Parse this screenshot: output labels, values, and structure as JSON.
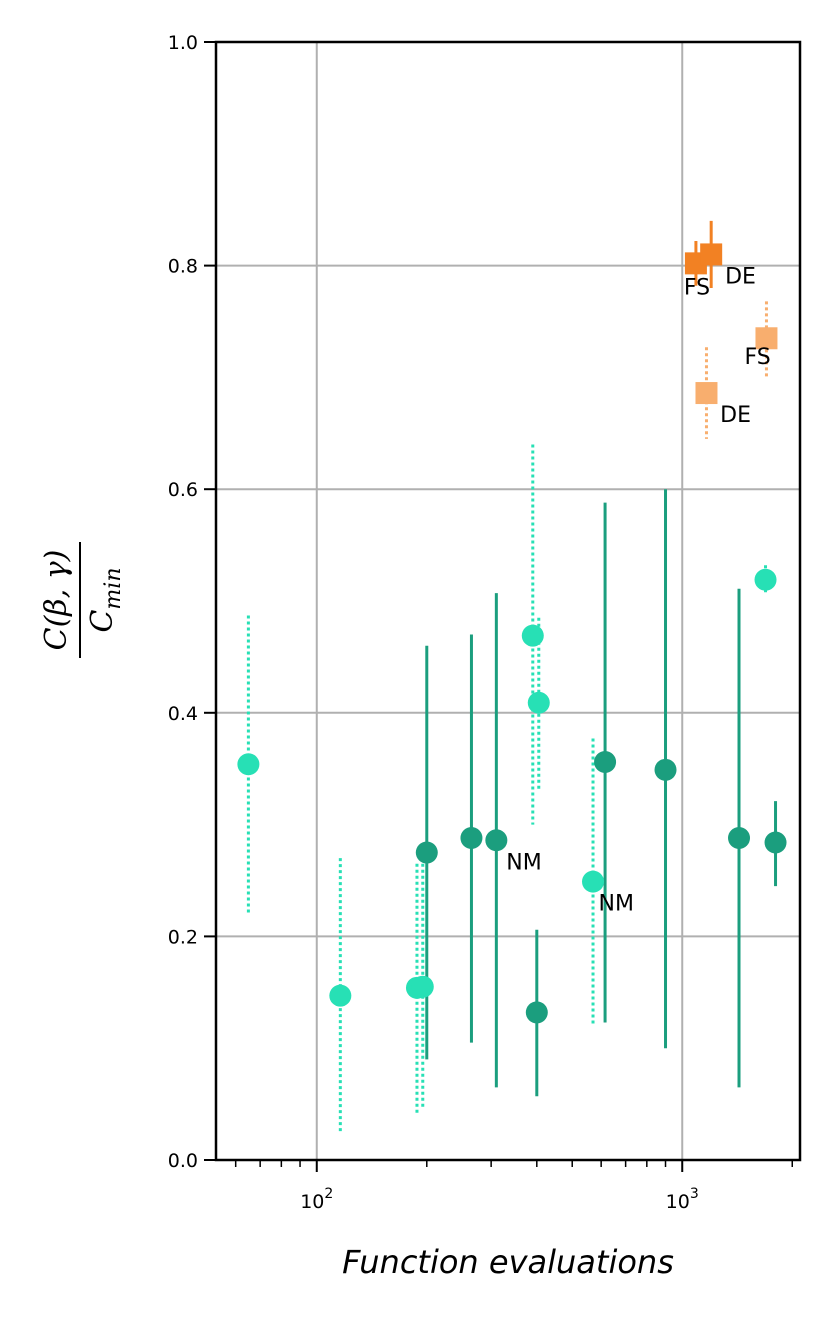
{
  "chart_data": {
    "type": "scatter",
    "xscale": "log",
    "xlim": [
      53,
      2100
    ],
    "ylim": [
      0.0,
      1.0
    ],
    "grid": true,
    "xlabel": "Function evaluations",
    "ylabel_numerator": "C(β, γ)",
    "ylabel_denominator": "C",
    "ylabel_denominator_sub": "min",
    "yticks": [
      "0.0",
      "0.2",
      "0.4",
      "0.6",
      "0.8",
      "1.0"
    ],
    "xticks": [
      {
        "base": "10",
        "exp": "2",
        "value": 100
      },
      {
        "base": "10",
        "exp": "3",
        "value": 1000
      }
    ],
    "colors": {
      "dark_green": "#1b9e7e",
      "light_green": "#27e0b5",
      "orange": "#f28123",
      "light_orange": "#f8ae6e",
      "grid": "#b0b0b0"
    },
    "series": [
      {
        "color_key": "dark_green",
        "marker": "circle",
        "errstyle": "solid",
        "points": [
          {
            "x": 200,
            "y": 0.275,
            "lo": 0.09,
            "hi": 0.46
          },
          {
            "x": 265,
            "y": 0.288,
            "lo": 0.105,
            "hi": 0.47
          },
          {
            "x": 310,
            "y": 0.286,
            "lo": 0.065,
            "hi": 0.507
          },
          {
            "x": 400,
            "y": 0.132,
            "lo": 0.057,
            "hi": 0.206
          },
          {
            "x": 615,
            "y": 0.356,
            "lo": 0.123,
            "hi": 0.588
          },
          {
            "x": 900,
            "y": 0.349,
            "lo": 0.1,
            "hi": 0.6
          },
          {
            "x": 1430,
            "y": 0.288,
            "lo": 0.065,
            "hi": 0.511
          },
          {
            "x": 1800,
            "y": 0.284,
            "lo": 0.245,
            "hi": 0.321
          }
        ]
      },
      {
        "color_key": "light_green",
        "marker": "circle",
        "errstyle": "dotted",
        "points": [
          {
            "x": 65,
            "y": 0.354,
            "lo": 0.22,
            "hi": 0.487
          },
          {
            "x": 116,
            "y": 0.147,
            "lo": 0.025,
            "hi": 0.27
          },
          {
            "x": 188,
            "y": 0.154,
            "lo": 0.04,
            "hi": 0.265
          },
          {
            "x": 195,
            "y": 0.155,
            "lo": 0.045,
            "hi": 0.265
          },
          {
            "x": 390,
            "y": 0.469,
            "lo": 0.3,
            "hi": 0.64
          },
          {
            "x": 405,
            "y": 0.409,
            "lo": 0.33,
            "hi": 0.485
          },
          {
            "x": 570,
            "y": 0.249,
            "lo": 0.12,
            "hi": 0.377
          },
          {
            "x": 1690,
            "y": 0.519,
            "lo": 0.506,
            "hi": 0.532
          }
        ]
      },
      {
        "color_key": "orange",
        "marker": "square",
        "errstyle": "solid",
        "points": [
          {
            "x": 1090,
            "y": 0.802,
            "lo": 0.782,
            "hi": 0.822
          },
          {
            "x": 1200,
            "y": 0.81,
            "lo": 0.78,
            "hi": 0.84
          }
        ]
      },
      {
        "color_key": "light_orange",
        "marker": "square",
        "errstyle": "dotted",
        "points": [
          {
            "x": 1165,
            "y": 0.686,
            "lo": 0.645,
            "hi": 0.727
          },
          {
            "x": 1700,
            "y": 0.735,
            "lo": 0.7,
            "hi": 0.768
          }
        ]
      }
    ],
    "annotations": [
      {
        "text": "FS",
        "x": 1010,
        "y": 0.774
      },
      {
        "text": "DE",
        "x": 1310,
        "y": 0.784
      },
      {
        "text": "FS",
        "x": 1480,
        "y": 0.712
      },
      {
        "text": "DE",
        "x": 1270,
        "y": 0.66
      },
      {
        "text": "NM",
        "x": 330,
        "y": 0.26
      },
      {
        "text": "NM",
        "x": 590,
        "y": 0.223
      }
    ]
  }
}
